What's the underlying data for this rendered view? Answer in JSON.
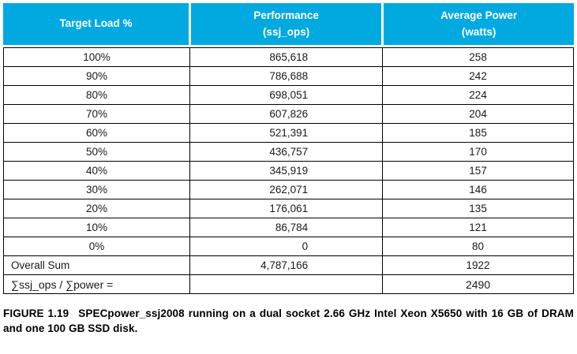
{
  "chart_data": {
    "type": "table",
    "columns": [
      {
        "lines": [
          "Target Load %"
        ]
      },
      {
        "lines": [
          "Performance",
          "(ssj_ops)"
        ]
      },
      {
        "lines": [
          "Average Power",
          "(watts)"
        ]
      }
    ],
    "rows": [
      {
        "cells": [
          "100%",
          "865,618",
          "258"
        ],
        "first_align": "center"
      },
      {
        "cells": [
          "90%",
          "786,688",
          "242"
        ],
        "first_align": "center"
      },
      {
        "cells": [
          "80%",
          "698,051",
          "224"
        ],
        "first_align": "center"
      },
      {
        "cells": [
          "70%",
          "607,826",
          "204"
        ],
        "first_align": "center"
      },
      {
        "cells": [
          "60%",
          "521,391",
          "185"
        ],
        "first_align": "center"
      },
      {
        "cells": [
          "50%",
          "436,757",
          "170"
        ],
        "first_align": "center"
      },
      {
        "cells": [
          "40%",
          "345,919",
          "157"
        ],
        "first_align": "center"
      },
      {
        "cells": [
          "30%",
          "262,071",
          "146"
        ],
        "first_align": "center"
      },
      {
        "cells": [
          "20%",
          "176,061",
          "135"
        ],
        "first_align": "center"
      },
      {
        "cells": [
          "10%",
          "86,784",
          "121"
        ],
        "first_align": "center"
      },
      {
        "cells": [
          "0%",
          "0",
          "80"
        ],
        "first_align": "center"
      },
      {
        "cells": [
          "Overall Sum",
          "4,787,166",
          "1922"
        ],
        "first_align": "left"
      },
      {
        "cells": [
          "∑ssj_ops / ∑power =",
          "",
          "2490"
        ],
        "first_align": "left",
        "formula": true
      }
    ]
  },
  "caption": {
    "label": "FIGURE 1.19",
    "text": "SPECpower_ssj2008 running on a dual socket 2.66 GHz Intel Xeon X5650 with 16 GB of DRAM and one 100 GB SSD disk."
  },
  "colors": {
    "header_bg": "#00a9e0",
    "header_text": "#ffffff",
    "border": "#000000"
  }
}
